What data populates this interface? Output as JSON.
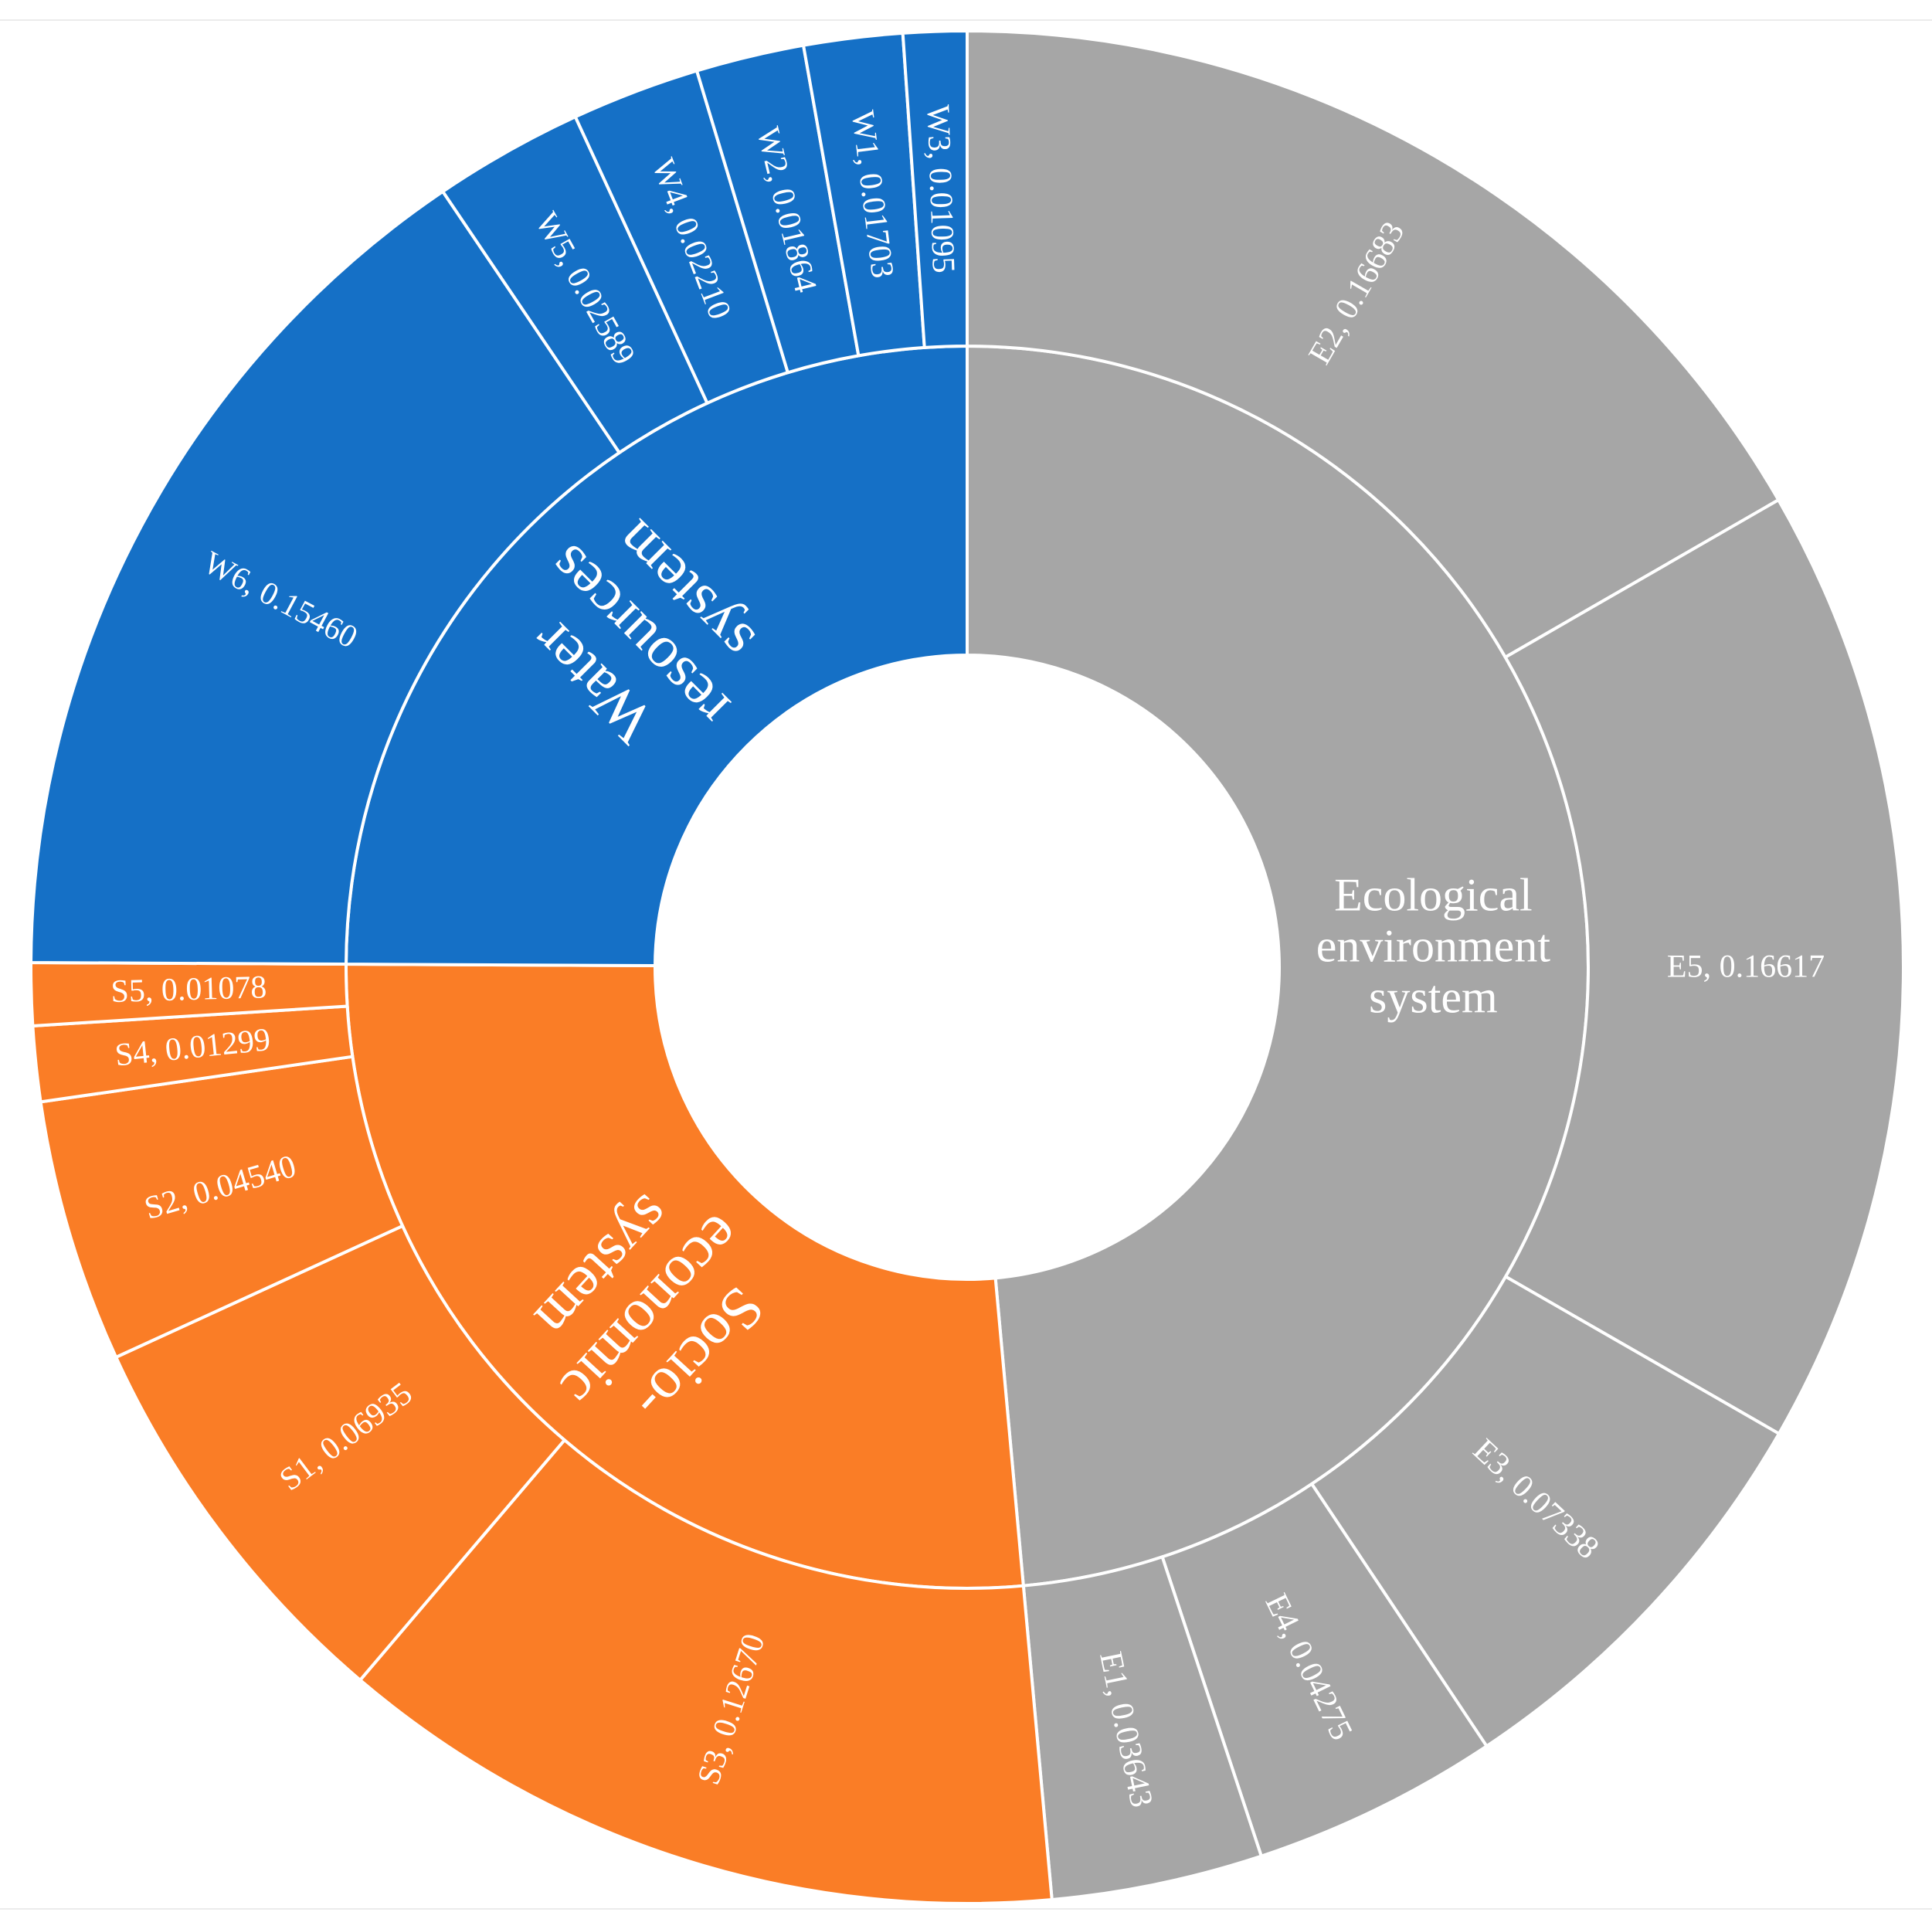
{
  "chart_data": {
    "type": "sunburst",
    "inner": [
      {
        "label_lines": [
          "Ecological",
          "environment",
          "system"
        ],
        "color": "#a6a6a6"
      },
      {
        "label_lines": [
          "Socio-",
          "economic",
          "system"
        ],
        "color": "#fa7d26"
      },
      {
        "label_lines": [
          "Water",
          "resources",
          "system"
        ],
        "color": "#1570c6"
      }
    ],
    "outer": [
      {
        "label": "E2, 0.16683",
        "name": "E2",
        "value": 0.16683,
        "parent": 0
      },
      {
        "label": "E5, 0.16617",
        "name": "E5",
        "value": 0.16617,
        "parent": 0
      },
      {
        "label": "E3, 0.07338",
        "name": "E3",
        "value": 0.07338,
        "parent": 0
      },
      {
        "label": "E4, 0.04275",
        "name": "E4",
        "value": 0.04275,
        "parent": 0
      },
      {
        "label": "E1, 0.03643",
        "name": "E1",
        "value": 0.03643,
        "parent": 0
      },
      {
        "label": "S3, 0.12670",
        "name": "S3",
        "value": 0.1267,
        "parent": 1
      },
      {
        "label": "S1, 0.06935",
        "name": "S1",
        "value": 0.06935,
        "parent": 1
      },
      {
        "label": "S2, 0.04540",
        "name": "S2",
        "value": 0.0454,
        "parent": 1
      },
      {
        "label": "S4, 0.01299",
        "name": "S4",
        "value": 0.01299,
        "parent": 1
      },
      {
        "label": "S5, 0.01078",
        "name": "S5",
        "value": 0.01078,
        "parent": 1
      },
      {
        "label": "W6, 0.15460",
        "name": "W6",
        "value": 0.1546,
        "parent": 2
      },
      {
        "label": "W5, 0.02589",
        "name": "W5",
        "value": 0.02589,
        "parent": 2
      },
      {
        "label": "W4, 0.02210",
        "name": "W4",
        "value": 0.0221,
        "parent": 2
      },
      {
        "label": "W2, 0.01864",
        "name": "W2",
        "value": 0.01864,
        "parent": 2
      },
      {
        "label": "W1, 0.01703",
        "name": "W1",
        "value": 0.01703,
        "parent": 2
      },
      {
        "label": "W3, 0.01095",
        "name": "W3",
        "value": 0.01095,
        "parent": 2
      }
    ]
  }
}
